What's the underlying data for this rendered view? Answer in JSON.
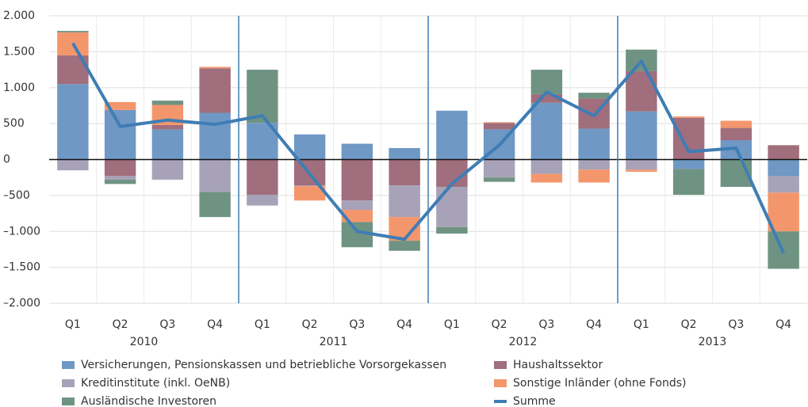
{
  "chart_data": {
    "type": "bar",
    "categories": [
      "Q1",
      "Q2",
      "Q3",
      "Q4",
      "Q1",
      "Q2",
      "Q3",
      "Q4",
      "Q1",
      "Q2",
      "Q3",
      "Q4",
      "Q1",
      "Q2",
      "Q3",
      "Q4"
    ],
    "years": [
      "2010",
      "2011",
      "2012",
      "2013"
    ],
    "series": [
      {
        "name": "Versicherungen, Pensionskassen und betriebliche Vorsorgekassen",
        "color": "#6f98c4",
        "values": [
          1050,
          690,
          420,
          650,
          510,
          350,
          220,
          160,
          680,
          420,
          790,
          430,
          670,
          -130,
          270,
          -230
        ]
      },
      {
        "name": "Kreditinstitute (inkl. OeNB)",
        "color": "#a7a2b8",
        "values": [
          -150,
          -50,
          -280,
          -450,
          -150,
          -10,
          -130,
          -440,
          -560,
          -250,
          -200,
          -140,
          -140,
          0,
          0,
          -230
        ]
      },
      {
        "name": "Ausländische Investoren",
        "color": "#6f9382",
        "values": [
          20,
          -60,
          60,
          -350,
          740,
          0,
          -350,
          -140,
          -90,
          -60,
          340,
          80,
          300,
          -360,
          -380,
          -520
        ]
      },
      {
        "name": "Haushaltssektor",
        "color": "#a06e7c",
        "values": [
          400,
          -230,
          60,
          620,
          -490,
          -360,
          -570,
          -360,
          -380,
          90,
          120,
          420,
          560,
          580,
          170,
          200
        ]
      },
      {
        "name": "Sonstige Inländer (ohne Fonds)",
        "color": "#f4966c",
        "values": [
          320,
          110,
          280,
          20,
          0,
          -200,
          -170,
          -330,
          0,
          10,
          -120,
          -180,
          -30,
          20,
          100,
          -540
        ]
      },
      {
        "name": "Summe",
        "type": "line",
        "color": "#3f7db4",
        "values": [
          1620,
          460,
          550,
          490,
          610,
          -200,
          -1000,
          -1110,
          -340,
          200,
          940,
          610,
          1370,
          110,
          160,
          -1300
        ]
      }
    ],
    "ylim": [
      -2000,
      2000
    ],
    "yticks": [
      {
        "value": -2000,
        "label": "–2.000"
      },
      {
        "value": -1500,
        "label": "–1.500"
      },
      {
        "value": -1000,
        "label": "–1.000"
      },
      {
        "value": -500,
        "label": "–500"
      },
      0,
      500,
      {
        "value": 1000,
        "label": "1.000"
      },
      {
        "value": 1500,
        "label": "1.500"
      },
      {
        "value": 2000,
        "label": "2.000"
      }
    ],
    "grid": true
  }
}
